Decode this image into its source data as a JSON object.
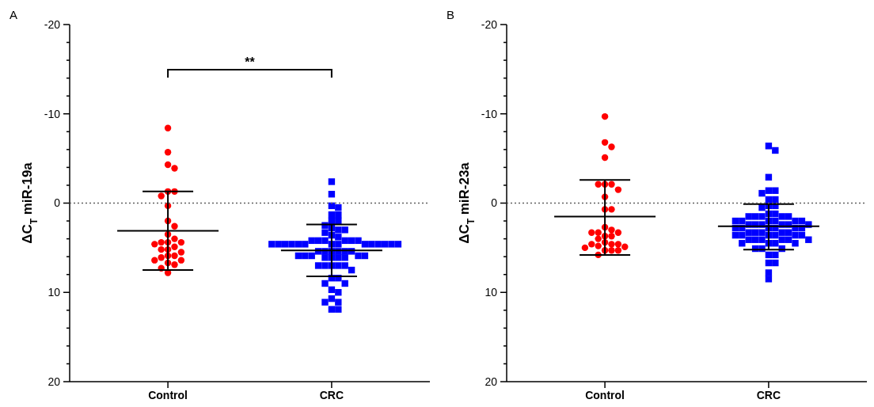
{
  "chart_data": [
    {
      "type": "scatter",
      "title": "A",
      "ylabel": "ΔC$_{T}$ miR-19a",
      "categories": [
        "Control",
        "CRC"
      ],
      "ylim": [
        20,
        -20
      ],
      "yticks": [
        -20,
        {
          "value": -18,
          "label": null
        },
        {
          "value": -16,
          "label": null
        },
        {
          "value": -14,
          "label": null
        },
        {
          "value": -12,
          "label": null
        },
        -10,
        {
          "value": -8,
          "label": null
        },
        {
          "value": -6,
          "label": null
        },
        {
          "value": -4,
          "label": null
        },
        {
          "value": -2,
          "label": null
        },
        0,
        {
          "value": 2,
          "label": null
        },
        {
          "value": 4,
          "label": null
        },
        {
          "value": 6,
          "label": null
        },
        {
          "value": 8,
          "label": null
        },
        10,
        {
          "value": 12,
          "label": null
        },
        {
          "value": 14,
          "label": null
        },
        {
          "value": 16,
          "label": null
        },
        {
          "value": 18,
          "label": null
        },
        20
      ],
      "ref_lines": [
        {
          "axis": "y",
          "value": 0,
          "line_style": "dotted",
          "color": "#606060"
        }
      ],
      "annotations": [
        "**"
      ],
      "series": [
        {
          "type": "scatter",
          "marker": "circle",
          "color": "#ff0000",
          "x": [
            "Control",
            "Control",
            "Control",
            "Control",
            "Control",
            "Control",
            "Control",
            "Control",
            "Control",
            "Control",
            "Control",
            "Control",
            "Control",
            "Control",
            "Control",
            "Control",
            "Control",
            "Control",
            "Control",
            "Control",
            "Control",
            "Control",
            "Control",
            "Control",
            "Control",
            "Control",
            "Control",
            "Control",
            "Control"
          ],
          "values": [
            -8.4,
            -5.7,
            -4.3,
            -3.9,
            -1.3,
            -1.3,
            -0.8,
            0.3,
            2.0,
            2.6,
            3.5,
            4.0,
            4.4,
            4.4,
            4.4,
            4.6,
            4.9,
            5.2,
            5.2,
            5.5,
            5.9,
            5.9,
            6.1,
            6.4,
            6.4,
            6.7,
            6.9,
            7.3,
            7.8
          ]
        },
        {
          "type": "scatter",
          "marker": "square",
          "color": "#0000ff",
          "x": [
            "CRC",
            "CRC",
            "CRC",
            "CRC",
            "CRC",
            "CRC",
            "CRC",
            "CRC",
            "CRC",
            "CRC",
            "CRC",
            "CRC",
            "CRC",
            "CRC",
            "CRC",
            "CRC",
            "CRC",
            "CRC",
            "CRC",
            "CRC",
            "CRC",
            "CRC",
            "CRC",
            "CRC",
            "CRC",
            "CRC",
            "CRC",
            "CRC",
            "CRC",
            "CRC",
            "CRC",
            "CRC",
            "CRC",
            "CRC",
            "CRC",
            "CRC",
            "CRC",
            "CRC",
            "CRC",
            "CRC",
            "CRC",
            "CRC",
            "CRC",
            "CRC",
            "CRC",
            "CRC",
            "CRC",
            "CRC",
            "CRC",
            "CRC",
            "CRC",
            "CRC",
            "CRC",
            "CRC",
            "CRC",
            "CRC",
            "CRC",
            "CRC",
            "CRC",
            "CRC",
            "CRC",
            "CRC",
            "CRC",
            "CRC",
            "CRC",
            "CRC",
            "CRC"
          ],
          "values": [
            -2.4,
            -1.0,
            0.3,
            0.5,
            1.3,
            1.3,
            2.0,
            2.0,
            2.5,
            2.8,
            3.0,
            3.0,
            3.3,
            3.6,
            3.8,
            4.2,
            4.2,
            4.2,
            4.2,
            4.2,
            4.2,
            4.6,
            4.6,
            4.6,
            4.6,
            4.6,
            4.6,
            4.6,
            4.6,
            4.6,
            4.6,
            4.6,
            4.6,
            4.6,
            4.6,
            5.4,
            5.4,
            5.4,
            5.4,
            5.4,
            5.4,
            5.9,
            5.9,
            5.9,
            5.9,
            5.9,
            6.1,
            6.1,
            6.1,
            6.1,
            7.0,
            7.0,
            7.0,
            7.0,
            7.0,
            7.5,
            8.4,
            8.4,
            9.0,
            9.0,
            9.7,
            10.0,
            10.7,
            11.1,
            11.1,
            11.9,
            11.9
          ]
        },
        {
          "type": "box",
          "color": "#000000",
          "boxes": [
            {
              "low": -1.3,
              "q1": 3.1,
              "median": 3.1,
              "q3": 3.1,
              "high": 7.5
            },
            {
              "low": 2.4,
              "q1": 5.3,
              "median": 5.3,
              "q3": 5.3,
              "high": 8.2
            }
          ]
        }
      ]
    },
    {
      "type": "scatter",
      "title": "B",
      "ylabel": "ΔC$_{T}$ miR-23a",
      "categories": [
        "Control",
        "CRC"
      ],
      "ylim": [
        20,
        -20
      ],
      "yticks": [
        -20,
        {
          "value": -18,
          "label": null
        },
        {
          "value": -16,
          "label": null
        },
        {
          "value": -14,
          "label": null
        },
        {
          "value": -12,
          "label": null
        },
        -10,
        {
          "value": -8,
          "label": null
        },
        {
          "value": -6,
          "label": null
        },
        {
          "value": -4,
          "label": null
        },
        {
          "value": -2,
          "label": null
        },
        0,
        {
          "value": 2,
          "label": null
        },
        {
          "value": 4,
          "label": null
        },
        {
          "value": 6,
          "label": null
        },
        {
          "value": 8,
          "label": null
        },
        10,
        {
          "value": 12,
          "label": null
        },
        {
          "value": 14,
          "label": null
        },
        {
          "value": 16,
          "label": null
        },
        {
          "value": 18,
          "label": null
        },
        20
      ],
      "ref_lines": [
        {
          "axis": "y",
          "value": 0,
          "line_style": "dotted",
          "color": "#606060"
        }
      ],
      "series": [
        {
          "type": "scatter",
          "marker": "circle",
          "color": "#ff0000",
          "x": [
            "Control",
            "Control",
            "Control",
            "Control",
            "Control",
            "Control",
            "Control",
            "Control",
            "Control",
            "Control",
            "Control",
            "Control",
            "Control",
            "Control",
            "Control",
            "Control",
            "Control",
            "Control",
            "Control",
            "Control",
            "Control",
            "Control",
            "Control",
            "Control",
            "Control",
            "Control",
            "Control",
            "Control",
            "Control",
            "Control"
          ],
          "values": [
            -9.7,
            -6.8,
            -6.3,
            -5.1,
            -2.1,
            -2.1,
            -2.1,
            -1.5,
            -0.7,
            0.7,
            0.7,
            2.7,
            3.0,
            3.3,
            3.3,
            3.3,
            3.7,
            3.7,
            4.0,
            4.4,
            4.6,
            4.6,
            4.6,
            4.8,
            4.9,
            5.0,
            5.3,
            5.3,
            5.3,
            5.8
          ]
        },
        {
          "type": "scatter",
          "marker": "square",
          "color": "#0000ff",
          "x": [
            "CRC",
            "CRC",
            "CRC",
            "CRC",
            "CRC",
            "CRC",
            "CRC",
            "CRC",
            "CRC",
            "CRC",
            "CRC",
            "CRC",
            "CRC",
            "CRC",
            "CRC",
            "CRC",
            "CRC",
            "CRC",
            "CRC",
            "CRC",
            "CRC",
            "CRC",
            "CRC",
            "CRC",
            "CRC",
            "CRC",
            "CRC",
            "CRC",
            "CRC",
            "CRC",
            "CRC",
            "CRC",
            "CRC",
            "CRC",
            "CRC",
            "CRC",
            "CRC",
            "CRC",
            "CRC",
            "CRC",
            "CRC",
            "CRC",
            "CRC",
            "CRC",
            "CRC",
            "CRC",
            "CRC",
            "CRC",
            "CRC",
            "CRC",
            "CRC",
            "CRC",
            "CRC",
            "CRC",
            "CRC",
            "CRC",
            "CRC",
            "CRC",
            "CRC",
            "CRC",
            "CRC",
            "CRC",
            "CRC",
            "CRC",
            "CRC",
            "CRC"
          ],
          "values": [
            -6.4,
            -5.9,
            -2.9,
            -1.4,
            -1.4,
            -1.1,
            -0.4,
            -0.4,
            0.3,
            0.3,
            0.5,
            1.2,
            1.2,
            1.5,
            1.5,
            1.5,
            1.5,
            1.5,
            2.0,
            2.0,
            2.0,
            2.0,
            2.0,
            2.0,
            2.4,
            2.4,
            2.4,
            2.4,
            2.4,
            2.4,
            2.8,
            2.8,
            2.8,
            2.8,
            2.8,
            2.8,
            3.3,
            3.3,
            3.3,
            3.3,
            3.3,
            3.6,
            3.6,
            3.6,
            3.6,
            3.6,
            3.6,
            4.1,
            4.1,
            4.1,
            4.1,
            4.1,
            4.1,
            4.5,
            4.5,
            4.5,
            4.5,
            5.1,
            5.1,
            5.1,
            5.8,
            5.8,
            6.7,
            6.7,
            7.8,
            8.5
          ]
        },
        {
          "type": "box",
          "color": "#000000",
          "boxes": [
            {
              "low": -2.6,
              "q1": 1.5,
              "median": 1.5,
              "q3": 1.5,
              "high": 5.8
            },
            {
              "low": 0.1,
              "q1": 2.6,
              "median": 2.6,
              "q3": 2.6,
              "high": 5.2
            }
          ]
        }
      ]
    }
  ]
}
